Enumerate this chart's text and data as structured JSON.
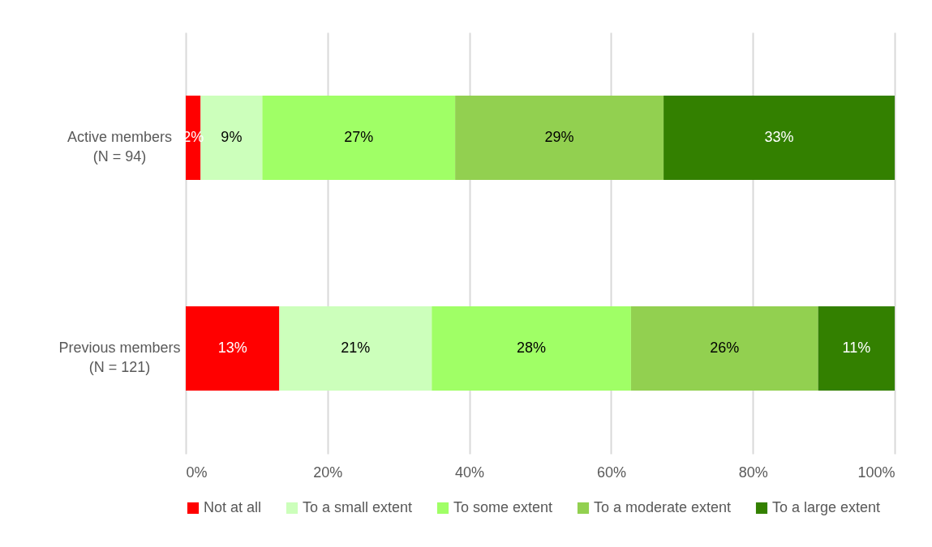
{
  "chart_data": {
    "type": "bar",
    "orientation": "horizontal",
    "stacked": true,
    "categories": [
      "Active members\n(N = 94)",
      "Previous members\n(N = 121)"
    ],
    "series": [
      {
        "name": "Not at all",
        "color": "#ff0000",
        "values": [
          2.1,
          13.2
        ],
        "value_labels": [
          "2%",
          "13%"
        ]
      },
      {
        "name": "To a small extent",
        "color": "#ccffbb",
        "values": [
          8.7,
          21.5
        ],
        "value_labels": [
          "9%",
          "21%"
        ]
      },
      {
        "name": "To some extent",
        "color": "#a0ff66",
        "values": [
          27.2,
          28.1
        ],
        "value_labels": [
          "27%",
          "28%"
        ]
      },
      {
        "name": "To a moderate extent",
        "color": "#92d050",
        "values": [
          29.4,
          26.4
        ],
        "value_labels": [
          "29%",
          "26%"
        ]
      },
      {
        "name": "To a large extent",
        "color": "#338000",
        "values": [
          32.6,
          10.8
        ],
        "value_labels": [
          "33%",
          "11%"
        ]
      }
    ],
    "xlim": [
      0,
      100
    ],
    "xticks": [
      {
        "value": 0,
        "label": "0%"
      },
      {
        "value": 20,
        "label": "20%"
      },
      {
        "value": 40,
        "label": "40%"
      },
      {
        "value": 60,
        "label": "60%"
      },
      {
        "value": 80,
        "label": "80%"
      },
      {
        "value": 100,
        "label": "100%"
      }
    ],
    "grid": "x",
    "legend": "bottom"
  }
}
